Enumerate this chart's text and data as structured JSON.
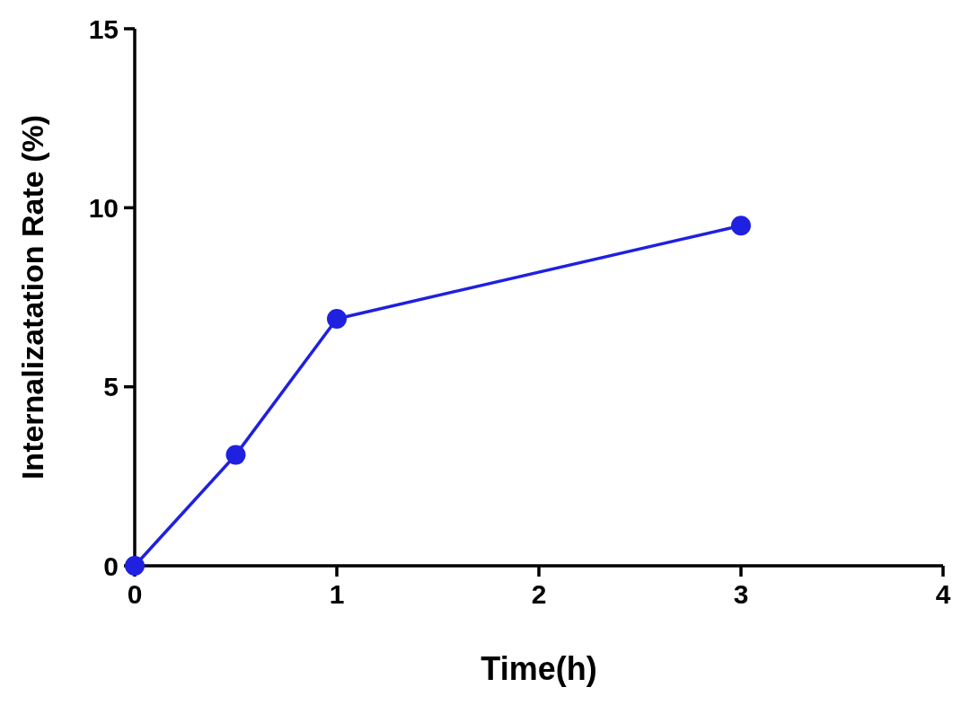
{
  "chart_data": {
    "type": "line",
    "xlabel": "Time(h)",
    "ylabel": "Internalizatation Rate (%)",
    "x": [
      0,
      0.5,
      1,
      3
    ],
    "series": [
      {
        "color": "#2020e0",
        "values": [
          0,
          3.1,
          6.9,
          9.5
        ]
      }
    ],
    "xlim": [
      0,
      4
    ],
    "xticks": [
      0,
      1,
      2,
      3,
      4
    ],
    "ylim": [
      0,
      15
    ],
    "yticks": [
      0,
      5,
      10,
      15
    ],
    "grid": false,
    "marker": "circle",
    "line_style": "solid"
  }
}
